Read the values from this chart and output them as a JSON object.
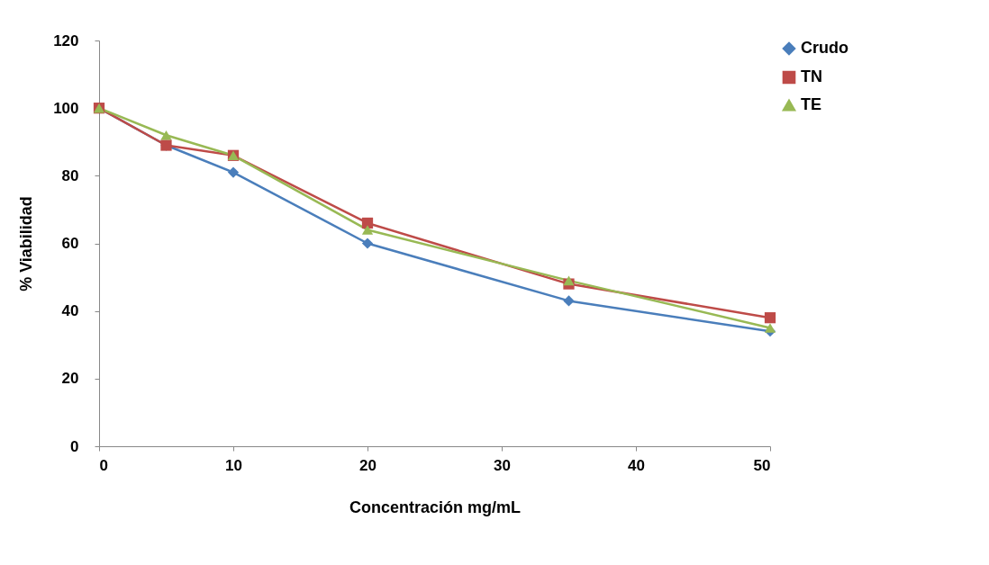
{
  "chart_data": {
    "type": "line",
    "xlabel": "Concentración mg/mL",
    "ylabel": "% Viabilidad",
    "x": [
      0,
      5,
      10,
      20,
      35,
      50
    ],
    "xlim": [
      0,
      50
    ],
    "xticks": [
      0,
      10,
      20,
      30,
      40,
      50
    ],
    "ylim": [
      0,
      120
    ],
    "yticks": [
      0,
      20,
      40,
      60,
      80,
      100,
      120
    ],
    "grid": false,
    "legend": "right",
    "series": [
      {
        "name": "Crudo",
        "color": "#4a7ebb",
        "marker": "diamond",
        "values": [
          100,
          89,
          81,
          60,
          43,
          34
        ]
      },
      {
        "name": "TN",
        "color": "#be4b48",
        "marker": "square",
        "values": [
          100,
          89,
          86,
          66,
          48,
          38
        ]
      },
      {
        "name": "TE",
        "color": "#98b954",
        "marker": "triangle",
        "values": [
          100,
          92,
          86,
          64,
          49,
          35
        ]
      }
    ]
  }
}
